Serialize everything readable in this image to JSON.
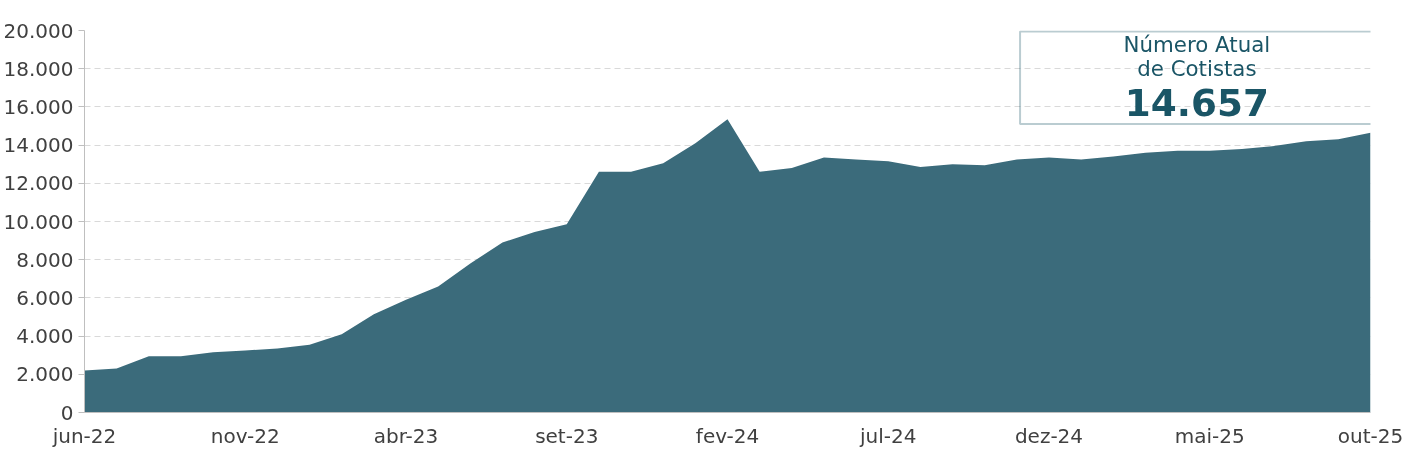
{
  "chart_data": {
    "type": "area",
    "categories": [
      "jun-22",
      null,
      null,
      null,
      null,
      "nov-22",
      null,
      null,
      null,
      null,
      "abr-23",
      null,
      null,
      null,
      null,
      "set-23",
      null,
      null,
      null,
      null,
      "fev-24",
      null,
      null,
      null,
      null,
      "jul-24",
      null,
      null,
      null,
      null,
      "dez-24",
      null,
      null,
      null,
      null,
      "mai-25",
      null,
      null,
      null,
      null,
      "out-25"
    ],
    "series": [
      {
        "color": "#3b6b7b",
        "values": [
          2200,
          2300,
          2950,
          2950,
          3150,
          3250,
          3350,
          3550,
          4100,
          5150,
          5900,
          6600,
          7800,
          8900,
          9450,
          9850,
          12600,
          12600,
          13050,
          14100,
          15350,
          12600,
          12800,
          13350,
          13250,
          13150,
          12850,
          13000,
          12950,
          13250,
          13350,
          13250,
          13400,
          13600,
          13700,
          13700,
          13800,
          13950,
          14200,
          14300,
          14650
        ]
      }
    ],
    "ylim": [
      0,
      20000
    ],
    "yticks": [
      {
        "value": 0,
        "label": "0"
      },
      {
        "value": 2000,
        "label": "2.000"
      },
      {
        "value": 4000,
        "label": "4.000"
      },
      {
        "value": 6000,
        "label": "6.000"
      },
      {
        "value": 8000,
        "label": "8.000"
      },
      {
        "value": 10000,
        "label": "10.000"
      },
      {
        "value": 12000,
        "label": "12.000"
      },
      {
        "value": 14000,
        "label": "14.000"
      },
      {
        "value": 16000,
        "label": "16.000"
      },
      {
        "value": 18000,
        "label": "18.000"
      },
      {
        "value": 20000,
        "label": "20.000"
      }
    ],
    "grid": "y",
    "annotations": [
      "Número Atual\nde Cotistas",
      "14.657"
    ]
  }
}
